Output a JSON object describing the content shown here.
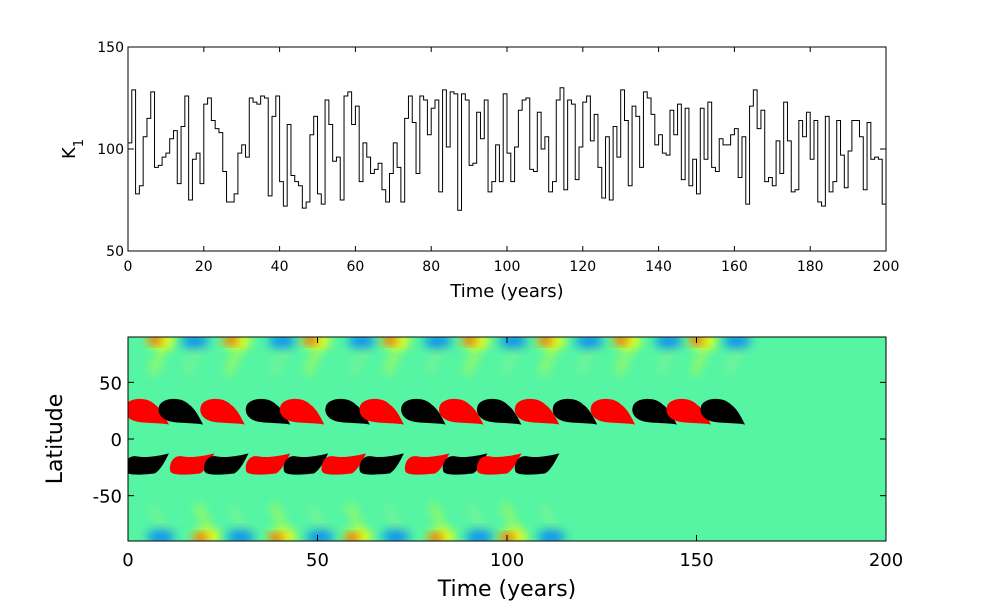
{
  "chart_data": [
    {
      "type": "line",
      "style": "step",
      "xlabel": "Time (years)",
      "ylabel_main": "K",
      "ylabel_sub": "1",
      "xlim": [
        0,
        200
      ],
      "ylim": [
        50,
        150
      ],
      "xticks": [
        0,
        20,
        40,
        60,
        80,
        100,
        120,
        140,
        160,
        180,
        200
      ],
      "yticks": [
        50,
        100,
        150
      ],
      "grid": false,
      "line_color": "#000000",
      "series": [
        {
          "x": [
            0,
            1,
            2,
            3,
            4,
            5,
            6,
            7,
            8,
            9,
            10,
            11,
            12,
            13,
            14,
            15,
            16,
            17,
            18,
            19,
            20,
            21,
            22,
            23,
            24,
            25,
            26,
            27,
            28,
            29,
            30,
            31,
            32,
            33,
            34,
            35,
            36,
            37,
            38,
            39,
            40,
            41,
            42,
            43,
            44,
            45,
            46,
            47,
            48,
            49,
            50,
            51,
            52,
            53,
            54,
            55,
            56,
            57,
            58,
            59,
            60,
            61,
            62,
            63,
            64,
            65,
            66,
            67,
            68,
            69,
            70,
            71,
            72,
            73,
            74,
            75,
            76,
            77,
            78,
            79,
            80,
            81,
            82,
            83,
            84,
            85,
            86,
            87,
            88,
            89,
            90,
            91,
            92,
            93,
            94,
            95,
            96,
            97,
            98,
            99,
            100,
            101,
            102,
            103,
            104,
            105,
            106,
            107,
            108,
            109,
            110,
            111,
            112,
            113,
            114,
            115,
            116,
            117,
            118,
            119,
            120,
            121,
            122,
            123,
            124,
            125,
            126,
            127,
            128,
            129,
            130,
            131,
            132,
            133,
            134,
            135,
            136,
            137,
            138,
            139,
            140,
            141,
            142,
            143,
            144,
            145,
            146,
            147,
            148,
            149,
            150,
            151,
            152,
            153,
            154,
            155,
            156,
            157,
            158,
            159,
            160,
            161,
            162,
            163,
            164,
            165,
            166,
            167,
            168,
            169,
            170,
            171,
            172,
            173,
            174,
            175,
            176,
            177,
            178,
            179,
            180,
            181,
            182,
            183,
            184,
            185,
            186,
            187,
            188,
            189,
            190,
            191,
            192,
            193,
            194,
            195,
            196,
            197,
            198,
            199
          ],
          "values": [
            103,
            129,
            78,
            82,
            106,
            115,
            128,
            91,
            92,
            96,
            98,
            105,
            109,
            83,
            111,
            126,
            75,
            95,
            98,
            83,
            122,
            125,
            114,
            110,
            108,
            89,
            74,
            74,
            78,
            98,
            102,
            96,
            125,
            123,
            122,
            126,
            125,
            77,
            116,
            126,
            84,
            72,
            112,
            87,
            84,
            82,
            71,
            74,
            107,
            116,
            78,
            73,
            124,
            112,
            94,
            96,
            75,
            126,
            128,
            112,
            121,
            84,
            103,
            96,
            88,
            90,
            93,
            80,
            74,
            88,
            103,
            91,
            74,
            115,
            126,
            113,
            88,
            126,
            124,
            107,
            120,
            124,
            79,
            129,
            101,
            128,
            127,
            70,
            127,
            124,
            92,
            93,
            118,
            105,
            124,
            79,
            84,
            102,
            84,
            127,
            98,
            84,
            101,
            119,
            124,
            125,
            90,
            89,
            118,
            100,
            106,
            79,
            84,
            124,
            130,
            80,
            124,
            122,
            85,
            101,
            123,
            126,
            104,
            117,
            91,
            76,
            106,
            75,
            111,
            96,
            129,
            114,
            82,
            121,
            116,
            91,
            128,
            125,
            117,
            102,
            107,
            98,
            97,
            119,
            107,
            122,
            85,
            120,
            82,
            95,
            78,
            120,
            95,
            123,
            91,
            89,
            105,
            102,
            102,
            107,
            110,
            86,
            106,
            73,
            121,
            129,
            110,
            119,
            84,
            86,
            82,
            104,
            88,
            123,
            104,
            79,
            80,
            114,
            106,
            118,
            95,
            114,
            74,
            72,
            116,
            79,
            84,
            114,
            97,
            81,
            99,
            114,
            114,
            106,
            80,
            113,
            95,
            96,
            95,
            73
          ]
        }
      ]
    },
    {
      "type": "heatmap",
      "xlabel": "Time (years)",
      "ylabel": "Latitude",
      "xlim": [
        0,
        200
      ],
      "ylim": [
        -90,
        90
      ],
      "xticks": [
        0,
        50,
        100,
        150,
        200
      ],
      "yticks": [
        -50,
        0,
        50
      ],
      "grid": false,
      "background_color": "#55F5A4",
      "colors": {
        "positive": "#FF0000",
        "negative": "#000000",
        "warm": "#FFFF00",
        "cool": "#0080FF"
      },
      "northern_blobs": [
        {
          "t": 5,
          "sign": "positive"
        },
        {
          "t": 14,
          "sign": "negative"
        },
        {
          "t": 25,
          "sign": "positive"
        },
        {
          "t": 37,
          "sign": "negative"
        },
        {
          "t": 46,
          "sign": "positive"
        },
        {
          "t": 58,
          "sign": "negative"
        },
        {
          "t": 67,
          "sign": "positive"
        },
        {
          "t": 78,
          "sign": "negative"
        },
        {
          "t": 88,
          "sign": "positive"
        },
        {
          "t": 98,
          "sign": "negative"
        },
        {
          "t": 108,
          "sign": "positive"
        },
        {
          "t": 118,
          "sign": "negative"
        },
        {
          "t": 128,
          "sign": "positive"
        },
        {
          "t": 139,
          "sign": "negative"
        },
        {
          "t": 148,
          "sign": "positive"
        },
        {
          "t": 157,
          "sign": "negative"
        }
      ],
      "southern_blobs": [
        {
          "t": 5,
          "sign": "negative"
        },
        {
          "t": 17,
          "sign": "positive"
        },
        {
          "t": 26,
          "sign": "negative"
        },
        {
          "t": 37,
          "sign": "positive"
        },
        {
          "t": 47,
          "sign": "negative"
        },
        {
          "t": 57,
          "sign": "positive"
        },
        {
          "t": 67,
          "sign": "negative"
        },
        {
          "t": 79,
          "sign": "positive"
        },
        {
          "t": 89,
          "sign": "negative"
        },
        {
          "t": 98,
          "sign": "positive"
        },
        {
          "t": 108,
          "sign": "negative"
        }
      ]
    }
  ]
}
